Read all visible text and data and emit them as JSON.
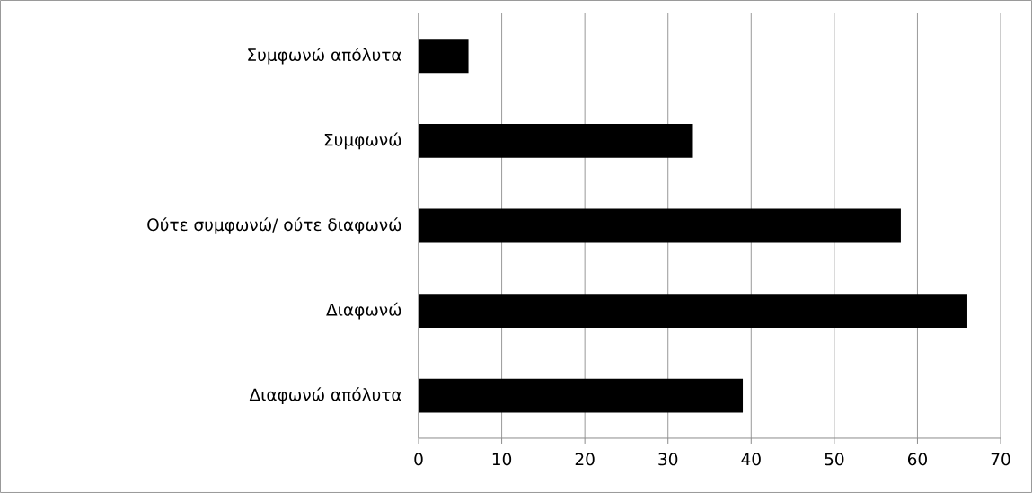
{
  "chart_data": {
    "type": "bar",
    "orientation": "horizontal",
    "categories": [
      "Συμφωνώ απόλυτα",
      "Συμφωνώ",
      "Ούτε συμφωνώ/ ούτε διαφωνώ",
      "Διαφωνώ",
      "Διαφωνώ απόλυτα"
    ],
    "values": [
      6,
      33,
      58,
      66,
      39
    ],
    "color": "#000000",
    "xlim": [
      0,
      70
    ],
    "xticks": [
      0,
      10,
      20,
      30,
      40,
      50,
      60,
      70
    ],
    "grid": "x"
  }
}
